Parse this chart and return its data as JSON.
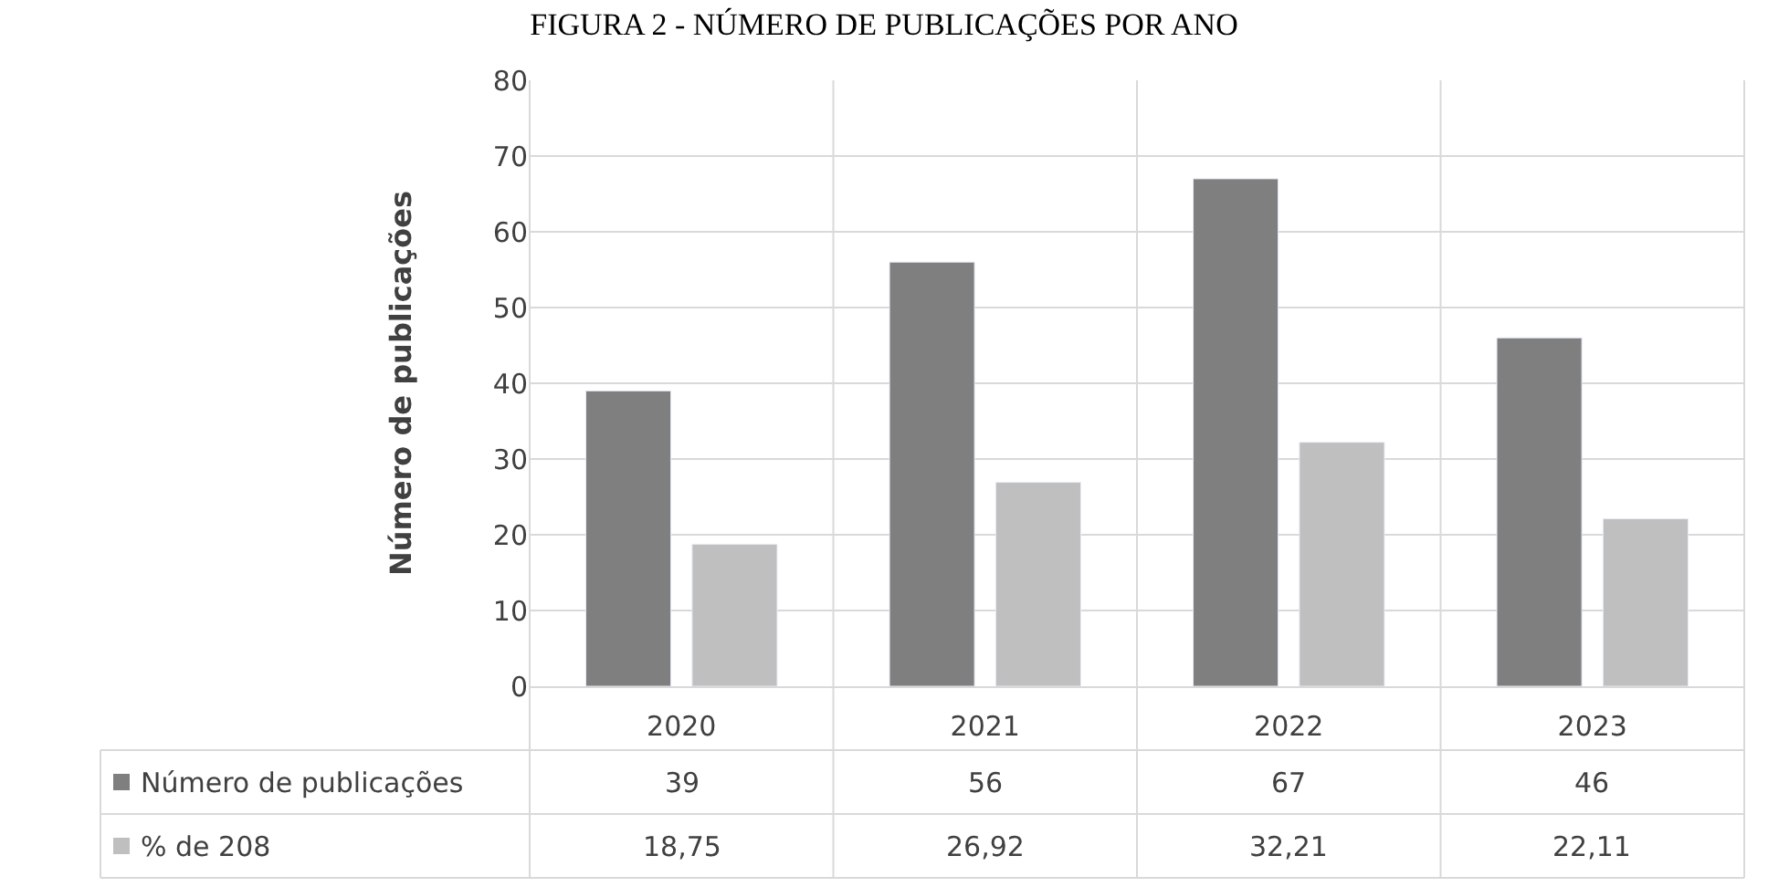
{
  "chart_data": {
    "type": "bar",
    "title": "FIGURA 2 - NÚMERO DE PUBLICAÇÕES POR ANO",
    "ylabel": "Número de publicações",
    "categories": [
      "2020",
      "2021",
      "2022",
      "2023"
    ],
    "series": [
      {
        "name": "Número de publicações",
        "color": "#7f7f7f",
        "values": [
          39,
          56,
          67,
          46
        ],
        "value_labels": [
          "39",
          "56",
          "67",
          "46"
        ]
      },
      {
        "name": "% de 208",
        "color": "#bfbfbf",
        "values": [
          18.75,
          26.92,
          32.21,
          22.11
        ],
        "value_labels": [
          "18,75",
          "26,92",
          "32,21",
          "22,11"
        ]
      }
    ],
    "ylim": [
      0,
      80
    ],
    "yticks": [
      0,
      10,
      20,
      30,
      40,
      50,
      60,
      70,
      80
    ],
    "grid": "y",
    "legend": "bottom left"
  }
}
